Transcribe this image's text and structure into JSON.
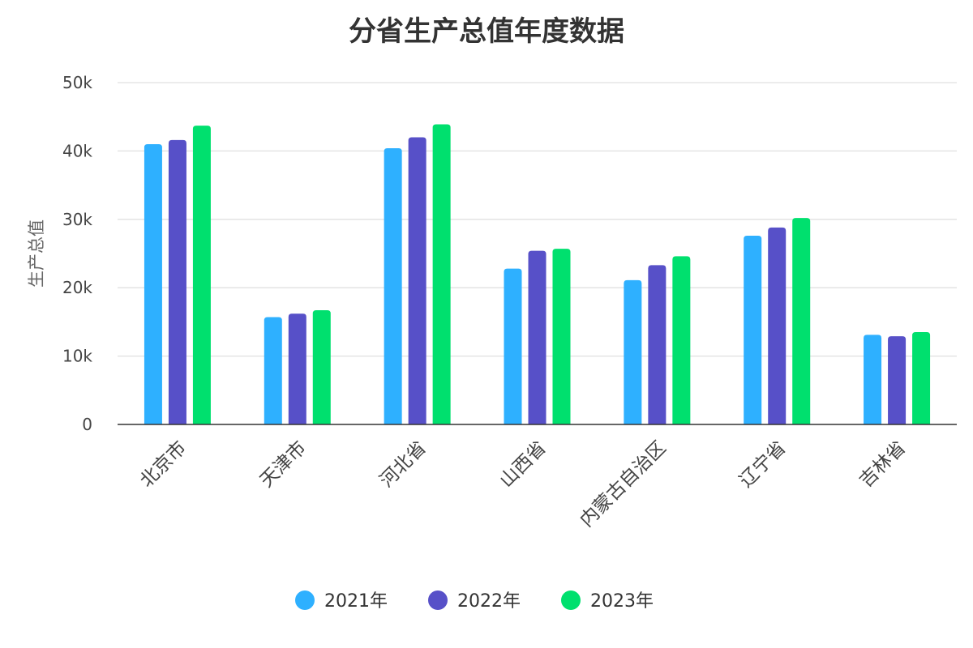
{
  "chart_data": {
    "type": "bar",
    "title": "分省生产总值年度数据",
    "xlabel": "",
    "ylabel": "生产总值",
    "ylim": [
      0,
      50000
    ],
    "yticks": [
      0,
      10000,
      20000,
      30000,
      40000,
      50000
    ],
    "ytick_labels": [
      "0",
      "10k",
      "20k",
      "30k",
      "40k",
      "50k"
    ],
    "categories": [
      "北京市",
      "天津市",
      "河北省",
      "山西省",
      "内蒙古自治区",
      "辽宁省",
      "吉林省"
    ],
    "series": [
      {
        "name": "2021年",
        "color": "#2EB0FF",
        "values": [
          41000,
          15700,
          40400,
          22800,
          21100,
          27600,
          13100
        ]
      },
      {
        "name": "2022年",
        "color": "#5750C8",
        "values": [
          41600,
          16200,
          42000,
          25400,
          23300,
          28800,
          12900
        ]
      },
      {
        "name": "2023年",
        "color": "#00E06E",
        "values": [
          43700,
          16700,
          43900,
          25700,
          24600,
          30200,
          13500
        ]
      }
    ],
    "grid": true,
    "legend_position": "bottom"
  }
}
